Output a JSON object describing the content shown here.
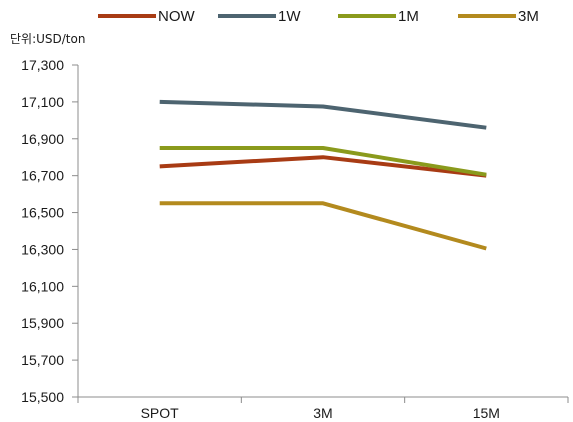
{
  "chart_data": {
    "type": "line",
    "unit_label": "단위:USD/ton",
    "categories": [
      "SPOT",
      "3M",
      "15M"
    ],
    "ylim": [
      15500,
      17300
    ],
    "yticks": [
      15500,
      15700,
      15900,
      16100,
      16300,
      16500,
      16700,
      16900,
      17100,
      17300
    ],
    "ytick_labels": [
      "15,500",
      "15,700",
      "15,900",
      "16,100",
      "16,300",
      "16,500",
      "16,700",
      "16,900",
      "17,100",
      "17,300"
    ],
    "grid": false,
    "legend_position": "top",
    "series": [
      {
        "name": "NOW",
        "color": "#a83b14",
        "values": [
          16750,
          16800,
          16700
        ]
      },
      {
        "name": "1W",
        "color": "#4d6470",
        "values": [
          17100,
          17075,
          16960
        ]
      },
      {
        "name": "1M",
        "color": "#8a9a1c",
        "values": [
          16850,
          16850,
          16705
        ]
      },
      {
        "name": "3M",
        "color": "#b38a1e",
        "values": [
          16550,
          16550,
          16305
        ]
      }
    ]
  }
}
